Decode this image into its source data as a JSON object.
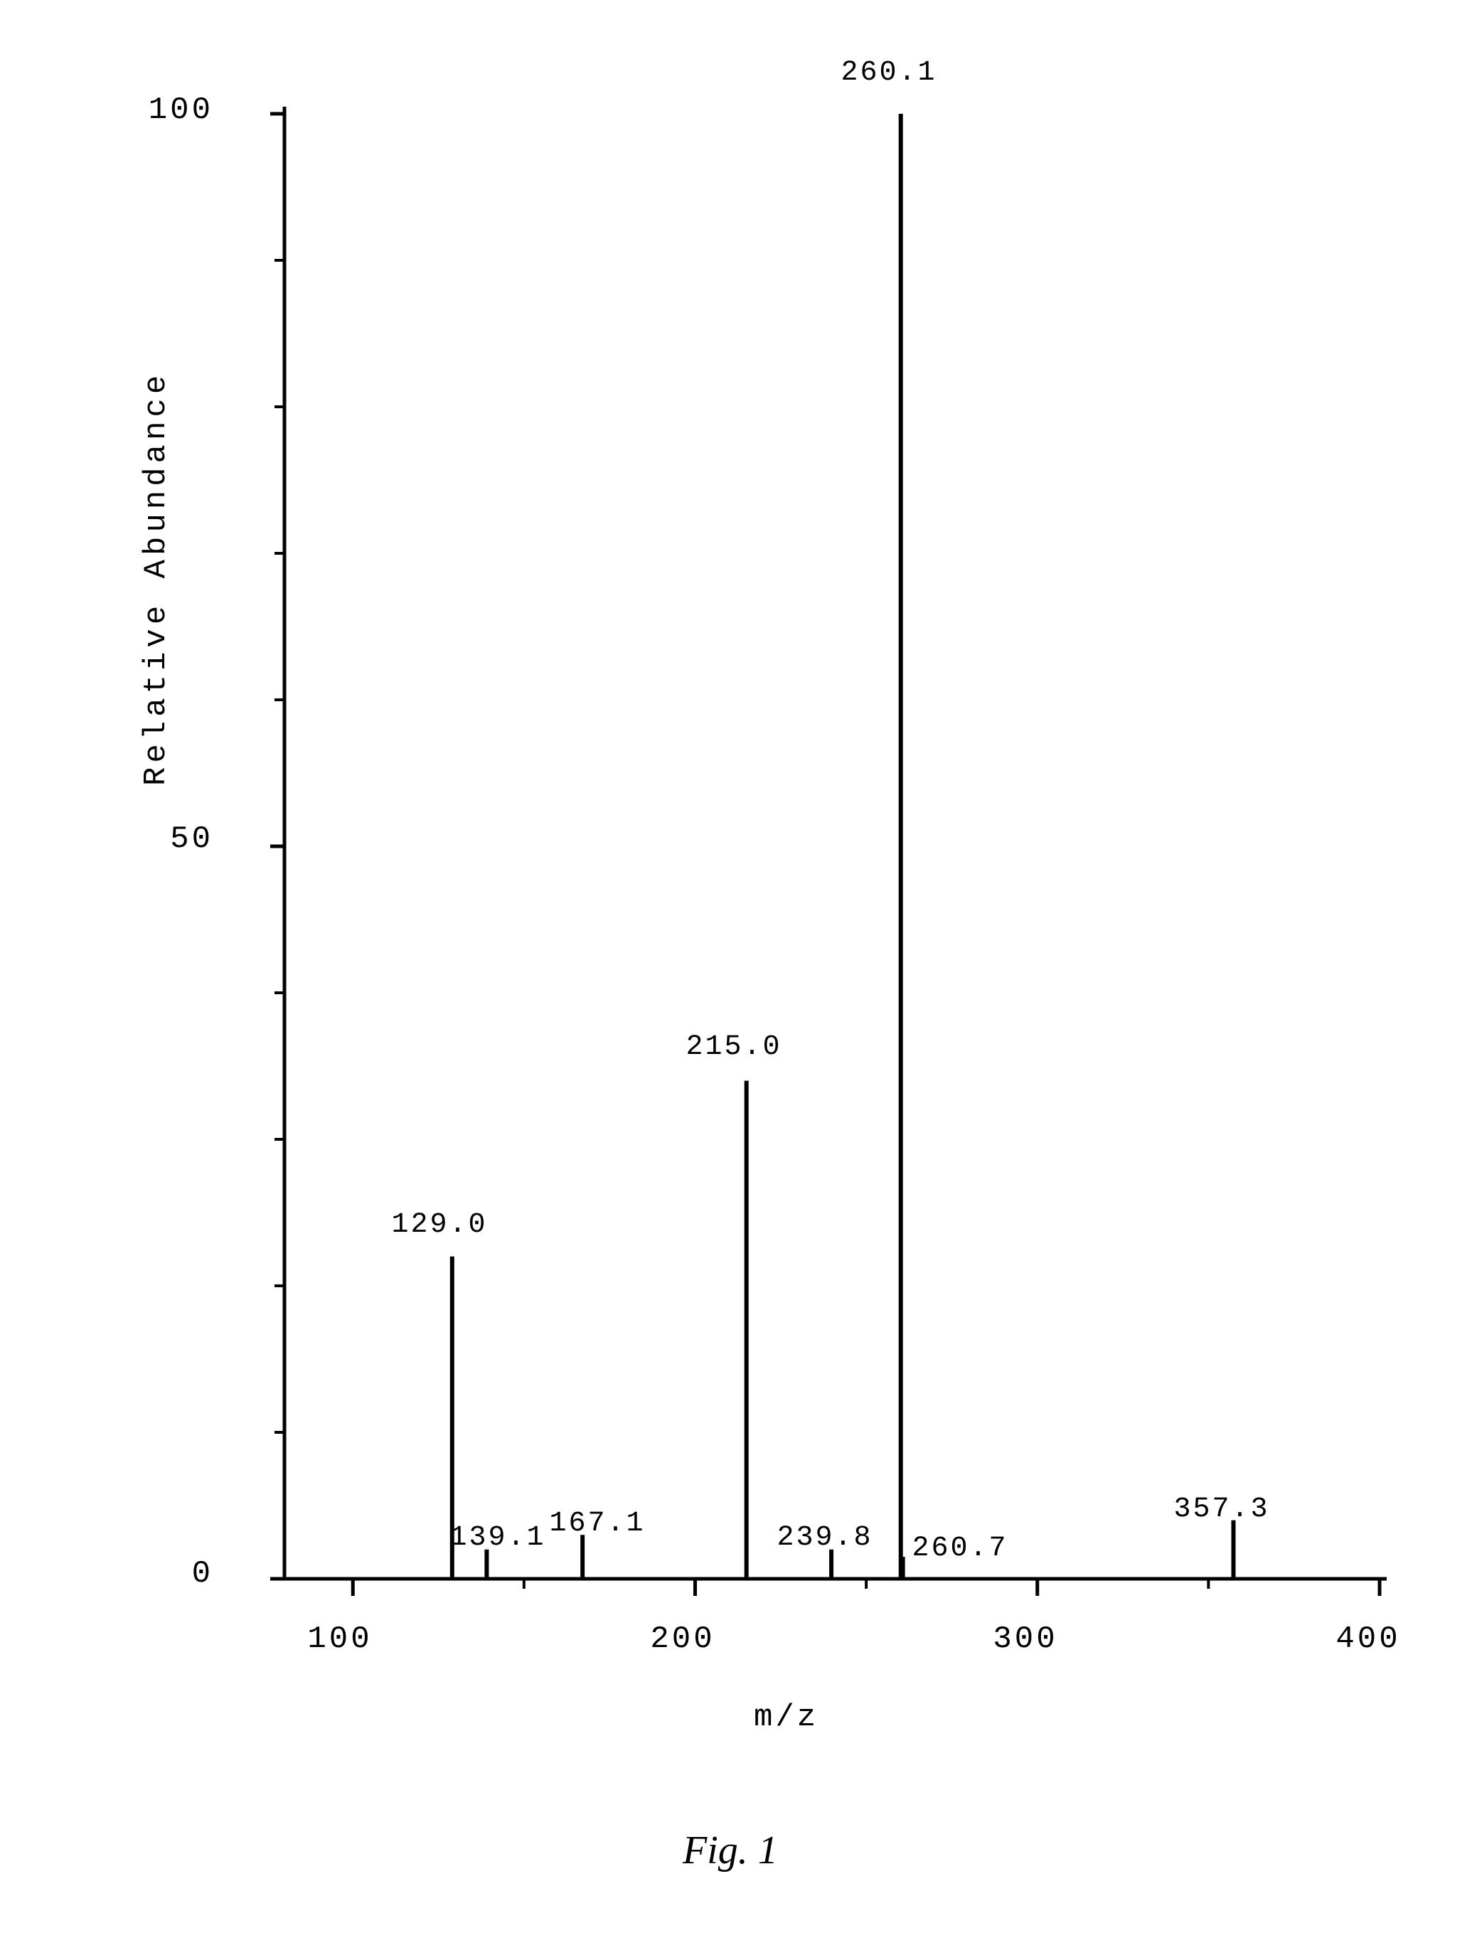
{
  "chart": {
    "type": "mass-spectrum",
    "y_label": "Relative Abundance",
    "x_label": "m/z",
    "figure_label": "Fig. 1",
    "xlim": [
      80,
      400
    ],
    "ylim": [
      0,
      100
    ],
    "y_ticks": [
      0,
      50,
      100
    ],
    "x_ticks": [
      100,
      200,
      300,
      400
    ],
    "axis_color": "#000000",
    "axis_width": 5,
    "tick_length_major": 24,
    "tick_length_minor": 14,
    "background_color": "#ffffff",
    "text_color": "#000000",
    "peak_color": "#000000",
    "peak_width": 6,
    "label_fontsize": 44,
    "tick_fontsize": 44,
    "peak_label_fontsize": 40,
    "figure_fontsize": 56,
    "peaks": [
      {
        "mz": 129.0,
        "abundance": 22,
        "label": "129.0"
      },
      {
        "mz": 139.1,
        "abundance": 2,
        "label": "139.1"
      },
      {
        "mz": 167.1,
        "abundance": 3,
        "label": "167.1"
      },
      {
        "mz": 215.0,
        "abundance": 34,
        "label": "215.0"
      },
      {
        "mz": 239.8,
        "abundance": 2,
        "label": "239.8"
      },
      {
        "mz": 260.1,
        "abundance": 100,
        "label": "260.1"
      },
      {
        "mz": 260.7,
        "abundance": 1.5,
        "label": "260.7"
      },
      {
        "mz": 357.3,
        "abundance": 4,
        "label": "357.3"
      }
    ]
  }
}
